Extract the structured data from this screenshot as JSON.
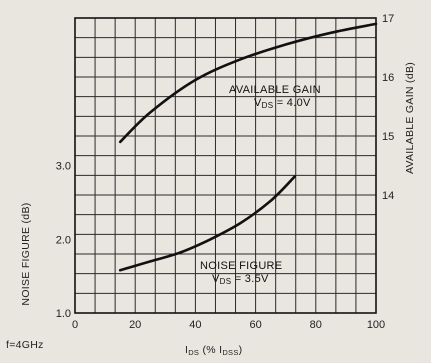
{
  "chart_data": {
    "type": "line",
    "x_axis": {
      "label": "I",
      "label_sub": "DS",
      "label_rest": " (% I",
      "label_sub2": "DSS",
      "label_end": ")",
      "range": [
        0,
        100
      ],
      "ticks": [
        0,
        20,
        40,
        60,
        80,
        100
      ],
      "tick_labels": [
        "0",
        "20",
        "40",
        "60",
        "80",
        "100"
      ]
    },
    "y_left": {
      "label": "NOISE FIGURE (dB)",
      "range": [
        1.0,
        5.0
      ],
      "ticks": [
        1.0,
        2.0,
        3.0
      ],
      "tick_labels": [
        "1.0",
        "2.0",
        "3.0"
      ]
    },
    "y_right": {
      "label": "AVAILABLE GAIN (dB)",
      "range": [
        12,
        17
      ],
      "ticks": [
        14,
        15,
        16,
        17
      ],
      "tick_labels": [
        "14",
        "15",
        "16",
        "17"
      ]
    },
    "grid": true,
    "condition_label": "f=4GHz",
    "series": [
      {
        "name": "AVAILABLE GAIN",
        "axis": "right",
        "condition_main": "V",
        "condition_sub": "DS",
        "condition_value": " = 4.0V",
        "x": [
          15,
          25,
          40,
          55,
          70,
          85,
          100
        ],
        "y": [
          14.9,
          15.4,
          15.95,
          16.3,
          16.55,
          16.75,
          16.9
        ]
      },
      {
        "name": "NOISE FIGURE",
        "axis": "left",
        "condition_main": "V",
        "condition_sub": "DS",
        "condition_value": " = 3.5V",
        "x": [
          15,
          25,
          35,
          45,
          55,
          65,
          73
        ],
        "y": [
          1.58,
          1.7,
          1.82,
          2.0,
          2.22,
          2.52,
          2.85
        ]
      }
    ]
  }
}
